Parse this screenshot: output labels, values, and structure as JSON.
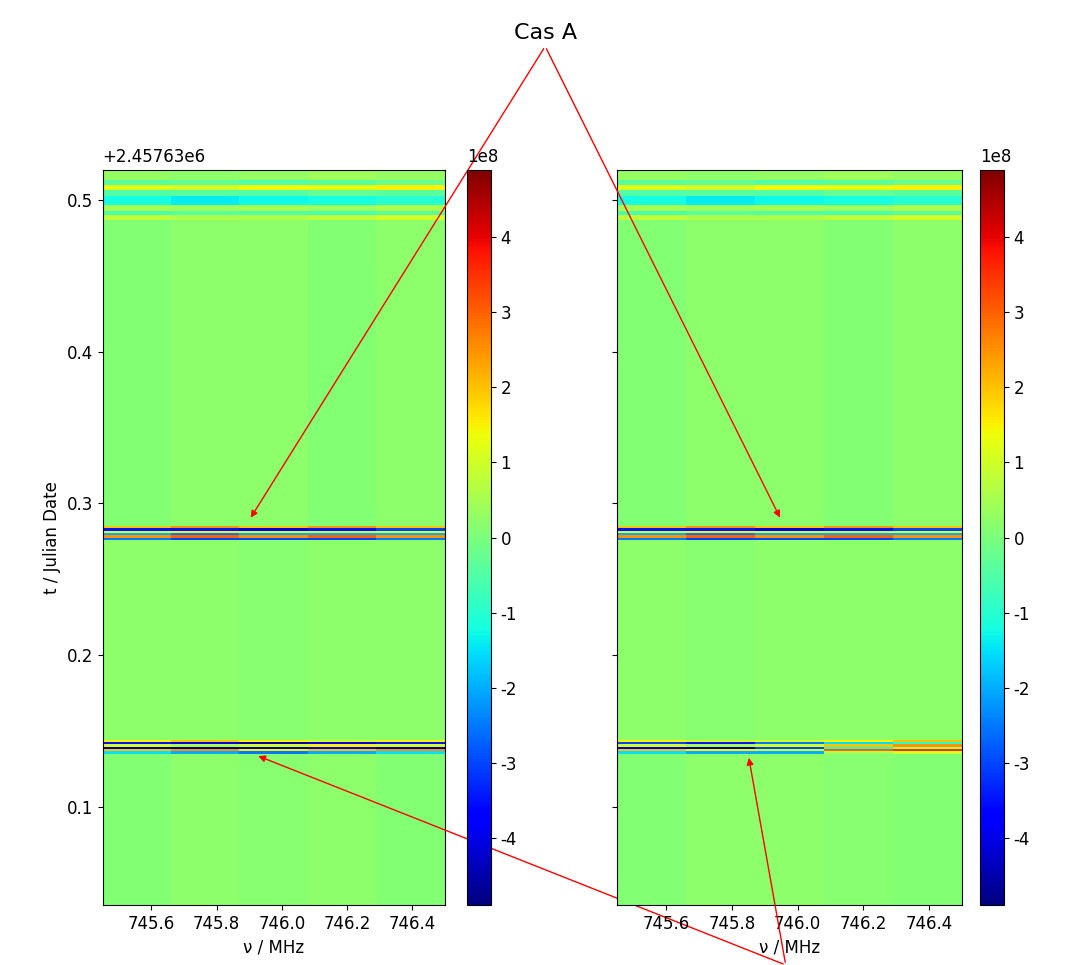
{
  "chart_data": [
    {
      "type": "heatmap",
      "x_label": "ν / MHz",
      "y_label": "t / Julian Date",
      "y_offset_label": "+2.45763e6",
      "xlim": [
        745.45,
        746.5
      ],
      "ylim": [
        0.035,
        0.52
      ],
      "xticks": [
        745.6,
        745.8,
        746.0,
        746.2,
        746.4
      ],
      "yticks": [
        0.1,
        0.2,
        0.3,
        0.4,
        0.5
      ],
      "freq_edges": [
        745.45,
        745.66,
        745.87,
        746.08,
        746.29,
        746.5
      ],
      "time_edges": [
        0.035,
        0.135,
        0.1365,
        0.138,
        0.1395,
        0.141,
        0.1425,
        0.144,
        0.276,
        0.2775,
        0.279,
        0.2805,
        0.282,
        0.2835,
        0.285,
        0.487,
        0.49,
        0.493,
        0.497,
        0.503,
        0.507,
        0.51,
        0.513,
        0.52
      ],
      "cells": [
        [
          0.1,
          0.2,
          0.15,
          0.2,
          0.1
        ],
        [
          -1.5,
          -2,
          -2.5,
          -2,
          -1.5
        ],
        [
          2,
          2.5,
          1.5,
          2,
          2.5
        ],
        [
          -4.5,
          -4.8,
          -4.5,
          -4,
          -4.5
        ],
        [
          1,
          0.5,
          1,
          1.5,
          1
        ],
        [
          -3.5,
          -4,
          -4.5,
          -4,
          -3.5
        ],
        [
          1.5,
          2,
          1.5,
          1,
          1.5
        ],
        [
          0.2,
          0.2,
          0.15,
          0.2,
          0.2
        ],
        [
          -2.5,
          -3,
          -3,
          -3,
          -2.5
        ],
        [
          2.5,
          3,
          2.5,
          3,
          2.5
        ],
        [
          -2,
          -2.5,
          -2,
          -2,
          -2
        ],
        [
          1,
          1.5,
          1,
          1,
          1
        ],
        [
          -3.5,
          -3.5,
          -4,
          -3.5,
          -3
        ],
        [
          2,
          2.5,
          2,
          2.5,
          2
        ],
        [
          0.1,
          0.2,
          0.2,
          0.1,
          0.2
        ],
        [
          0.8,
          0.6,
          0.6,
          0.8,
          1.0
        ],
        [
          -0.6,
          -0.4,
          -0.5,
          -0.6,
          -0.4
        ],
        [
          0.5,
          0.4,
          0.5,
          0.4,
          0.6
        ],
        [
          -1.2,
          -1.4,
          -1.3,
          -1.2,
          -1.0
        ],
        [
          -0.5,
          -0.4,
          -0.5,
          -0.3,
          -0.4
        ],
        [
          1.2,
          1.0,
          1.4,
          1.3,
          1.5
        ],
        [
          -0.4,
          -0.3,
          -0.5,
          -0.4,
          -0.2
        ],
        [
          0.3,
          0.2,
          0.3,
          0.4,
          0.3
        ]
      ],
      "colorbar_range": [
        -4.9,
        4.9
      ],
      "colorbar_ticks": [
        -4,
        -3,
        -2,
        -1,
        0,
        1,
        2,
        3,
        4
      ],
      "colorbar_offset_label": "1e8"
    },
    {
      "type": "heatmap",
      "x_label": "ν / MHz",
      "xlim": [
        745.45,
        746.5
      ],
      "ylim": [
        0.035,
        0.52
      ],
      "xticks": [
        745.6,
        745.8,
        746.0,
        746.2,
        746.4
      ],
      "yticks": [
        0.1,
        0.2,
        0.3,
        0.4,
        0.5
      ],
      "tick_labels": "x",
      "freq_edges": [
        745.45,
        745.66,
        745.87,
        746.08,
        746.29,
        746.5
      ],
      "time_edges": [
        0.035,
        0.135,
        0.1365,
        0.138,
        0.1395,
        0.141,
        0.1425,
        0.144,
        0.276,
        0.2775,
        0.279,
        0.2805,
        0.282,
        0.2835,
        0.285,
        0.487,
        0.49,
        0.493,
        0.497,
        0.503,
        0.507,
        0.51,
        0.513,
        0.52
      ],
      "cells": [
        [
          0.1,
          0.2,
          0.2,
          0.15,
          0.1
        ],
        [
          -1.5,
          -2,
          -2,
          0.5,
          1
        ],
        [
          2,
          1.5,
          1,
          3,
          3.5
        ],
        [
          -4,
          -4.5,
          -3,
          -1,
          0.5
        ],
        [
          1,
          0.5,
          1,
          2,
          2.5
        ],
        [
          -3,
          -3.5,
          -2.5,
          -1.5,
          -1
        ],
        [
          1.5,
          1,
          1,
          1.5,
          2
        ],
        [
          0.2,
          0.15,
          0.2,
          0.2,
          0.2
        ],
        [
          -2.5,
          -3,
          -3,
          -3,
          -2.5
        ],
        [
          2.5,
          3,
          2.5,
          3,
          2.5
        ],
        [
          -2,
          -2.5,
          -2,
          -2,
          -2
        ],
        [
          1,
          1.5,
          1,
          1,
          1
        ],
        [
          -3.5,
          -3.5,
          -4,
          -3.5,
          -3
        ],
        [
          2,
          2.5,
          2,
          2.5,
          2
        ],
        [
          0.1,
          0.2,
          0.2,
          0.1,
          0.2
        ],
        [
          0.8,
          0.6,
          0.6,
          0.8,
          1.0
        ],
        [
          -0.6,
          -0.4,
          -0.5,
          -0.6,
          -0.4
        ],
        [
          0.5,
          0.4,
          0.5,
          0.4,
          0.6
        ],
        [
          -1.2,
          -1.4,
          -1.3,
          -1.2,
          -1.0
        ],
        [
          -0.5,
          -0.4,
          -0.5,
          -0.3,
          -0.4
        ],
        [
          1.2,
          1.0,
          1.4,
          1.3,
          1.5
        ],
        [
          -0.4,
          -0.3,
          -0.5,
          -0.4,
          -0.2
        ],
        [
          0.3,
          0.2,
          0.3,
          0.4,
          0.3
        ]
      ],
      "colorbar_range": [
        -4.9,
        4.9
      ],
      "colorbar_ticks": [
        -4,
        -3,
        -2,
        -1,
        0,
        1,
        2,
        3,
        4
      ],
      "colorbar_offset_label": "1e8"
    }
  ],
  "annotations": [
    {
      "text": "Cas A"
    }
  ]
}
